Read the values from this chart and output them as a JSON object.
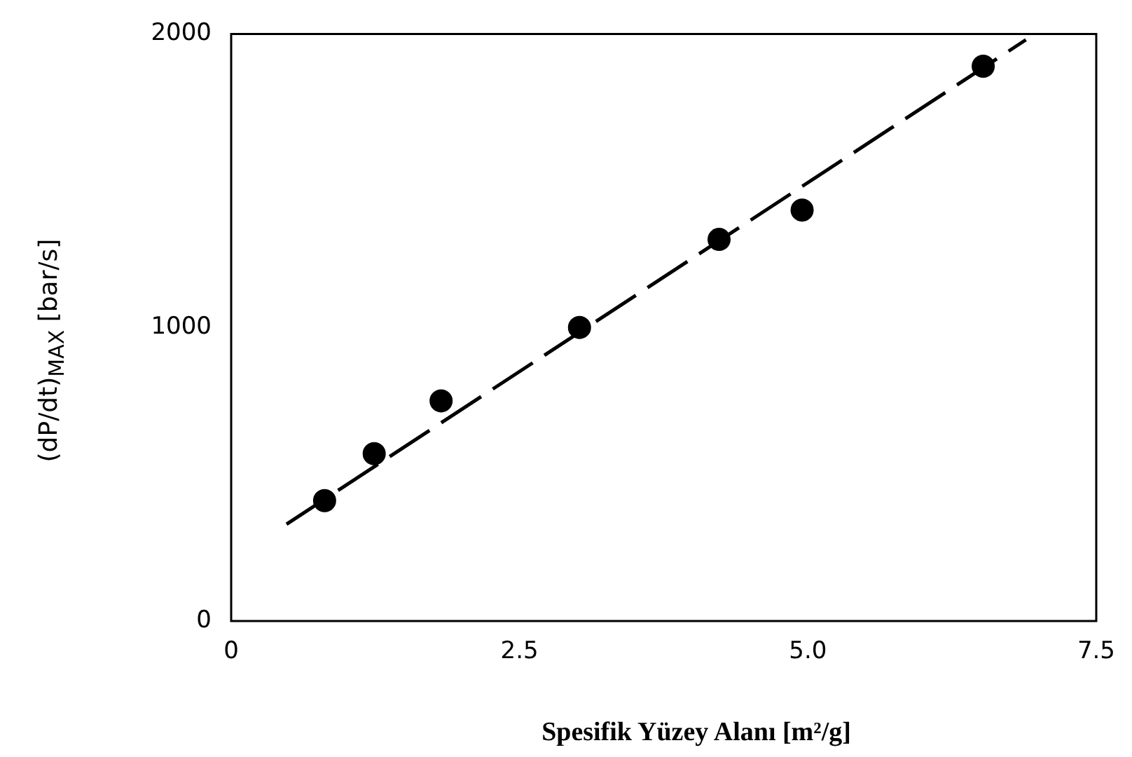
{
  "chart_data": {
    "type": "scatter",
    "xlabel": "Spesifik Yüzey Alanı  [m²/g]",
    "ylabel": "(dP/dt)$_{MAX}$  [bar/s]",
    "xlim": [
      0,
      7.5
    ],
    "xticks": [
      0,
      2.5,
      {
        "value": 5,
        "label": "5.0"
      },
      {
        "value": 7.5,
        "label": "7.5"
      }
    ],
    "ylim": [
      0,
      2000
    ],
    "yticks": [
      0,
      1000,
      2000
    ],
    "grid": false,
    "legend": false,
    "marker": "circle",
    "series": [
      {
        "type": "scatter",
        "color": "#000000",
        "x": [
          0.81,
          1.24,
          1.82,
          3.02,
          4.23,
          4.95,
          6.52
        ],
        "values": [
          410,
          570,
          750,
          1000,
          1300,
          1400,
          1890
        ]
      },
      {
        "type": "line",
        "color": "#000000",
        "line_style": "dashed",
        "marker": "none",
        "x": [
          0.48,
          6.89
        ],
        "values": [
          330,
          1980
        ]
      }
    ]
  }
}
